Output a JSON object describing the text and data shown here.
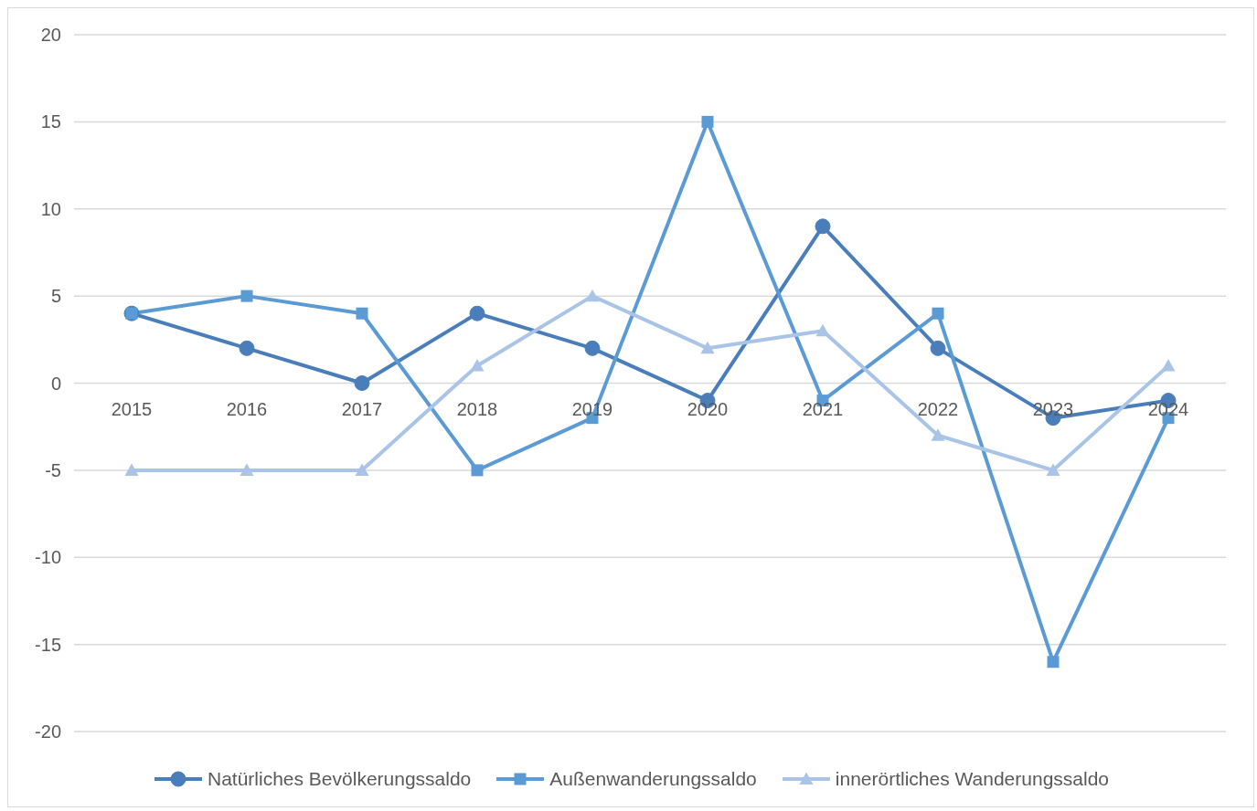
{
  "chart_data": {
    "type": "line",
    "categories": [
      "2015",
      "2016",
      "2017",
      "2018",
      "2019",
      "2020",
      "2021",
      "2022",
      "2023",
      "2024"
    ],
    "series": [
      {
        "name": "Natürliches Bevölkerungssaldo",
        "color": "#4a7ebb",
        "marker": "circle",
        "values": [
          4,
          2,
          0,
          4,
          2,
          -1,
          9,
          2,
          -2,
          -1
        ]
      },
      {
        "name": "Außenwanderungssaldo",
        "color": "#5b9bd5",
        "marker": "square",
        "values": [
          4,
          5,
          4,
          -5,
          -2,
          15,
          -1,
          4,
          -16,
          -2
        ]
      },
      {
        "name": "innerörtliches Wanderungssaldo",
        "color": "#a9c4e6",
        "marker": "triangle",
        "values": [
          -5,
          -5,
          -5,
          1,
          5,
          2,
          3,
          -3,
          -5,
          1
        ]
      }
    ],
    "ylim": [
      -20,
      20
    ],
    "yticks": [
      -20,
      -15,
      -10,
      -5,
      0,
      5,
      10,
      15,
      20
    ],
    "grid": "y",
    "legend": "bottom",
    "line_style": "solid"
  }
}
